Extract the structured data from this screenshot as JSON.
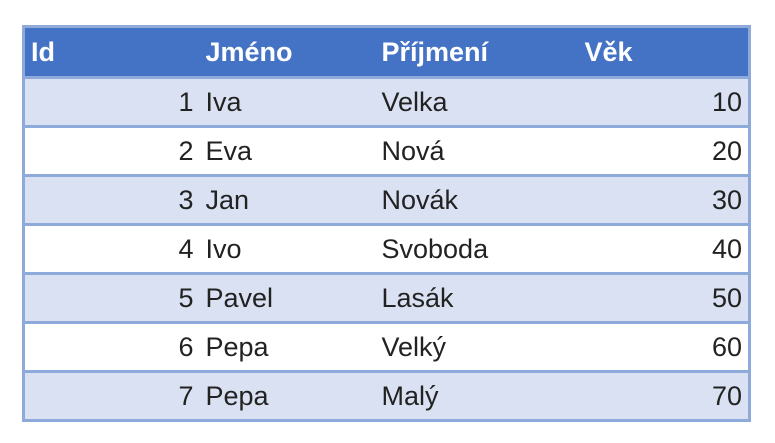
{
  "table": {
    "header": [
      "Id",
      "Jméno",
      "Příjmení",
      "Věk"
    ],
    "rows": [
      [
        1,
        "Iva",
        "Velka",
        10
      ],
      [
        2,
        "Eva",
        "Nová",
        20
      ],
      [
        3,
        "Jan",
        "Novák",
        30
      ],
      [
        4,
        "Ivo",
        "Svoboda",
        40
      ],
      [
        5,
        "Pavel",
        "Lasák",
        50
      ],
      [
        6,
        "Pepa",
        "Velký",
        60
      ],
      [
        7,
        "Pepa",
        "Malý",
        70
      ]
    ]
  }
}
